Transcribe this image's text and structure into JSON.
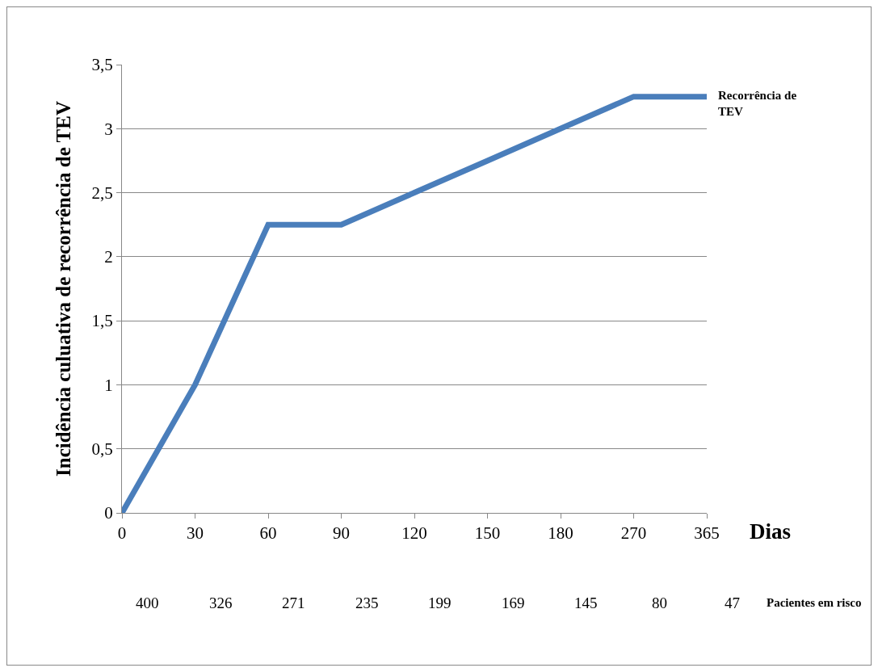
{
  "chart_data": {
    "type": "line",
    "xlabel": "Dias",
    "ylabel": "Incidência culuativa de recorrência de TEV",
    "categories": [
      "0",
      "30",
      "60",
      "90",
      "120",
      "150",
      "180",
      "270",
      "365"
    ],
    "series": [
      {
        "name": "Recorrência de TEV",
        "color": "#4a7ebb",
        "values": [
          0,
          1,
          2.25,
          2.25,
          2.5,
          2.75,
          3,
          3.25,
          3.25
        ]
      }
    ],
    "ylim": [
      0,
      3.5
    ],
    "yticks": [
      0,
      {
        "value": 0.5,
        "label": "0,5"
      },
      1,
      {
        "value": 1.5,
        "label": "1,5"
      },
      2,
      {
        "value": 2.5,
        "label": "2,5"
      },
      3,
      {
        "value": 3.5,
        "label": "3,5"
      }
    ],
    "grid": "y",
    "legend": false,
    "marker": "none",
    "line_style": "solid",
    "annotations": [
      "400",
      "326",
      "271",
      "235",
      "199",
      "169",
      "145",
      "80",
      "47",
      "Pacientes em risco"
    ]
  }
}
